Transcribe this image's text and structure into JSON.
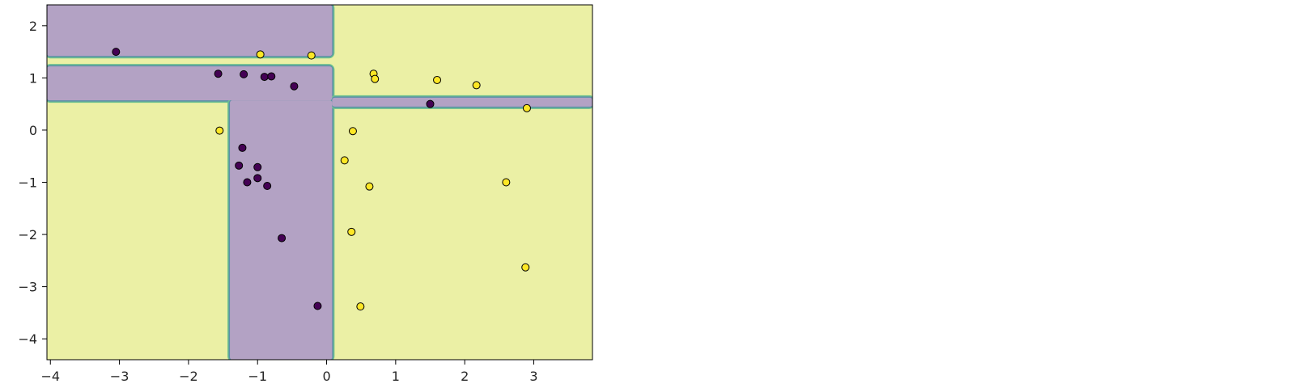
{
  "chart_data": {
    "type": "scatter",
    "title": "",
    "xlabel": "",
    "ylabel": "",
    "xlim": [
      -4.05,
      3.85
    ],
    "ylim": [
      -4.4,
      2.4
    ],
    "xticks": [
      -4,
      -3,
      -2,
      -1,
      0,
      1,
      2,
      3
    ],
    "yticks": [
      -4,
      -3,
      -2,
      -1,
      0,
      1,
      2
    ],
    "xtick_labels": [
      "−4",
      "−3",
      "−2",
      "−1",
      "0",
      "1",
      "2",
      "3"
    ],
    "ytick_labels": [
      "−4",
      "−3",
      "−2",
      "−1",
      "0",
      "1",
      "2"
    ],
    "grid": false,
    "background": {
      "description": "decision-tree decision regions",
      "class_colors": {
        "class_0": "#b3a2c4",
        "class_1": "#ebf0a5"
      },
      "boundary_colors": [
        "#5b8fa6",
        "#6cc08f"
      ],
      "class_0_regions": [
        {
          "x": [
            -4.05,
            0.08
          ],
          "y": [
            1.42,
            2.4
          ]
        },
        {
          "x": [
            -4.05,
            0.08
          ],
          "y": [
            0.57,
            1.22
          ]
        },
        {
          "x": [
            -1.4,
            0.08
          ],
          "y": [
            -4.4,
            0.57
          ]
        },
        {
          "x": [
            0.08,
            3.85
          ],
          "y": [
            0.45,
            0.62
          ]
        }
      ]
    },
    "series": [
      {
        "class": 0,
        "color": "#440154",
        "points": [
          [
            -3.05,
            1.5
          ],
          [
            -1.57,
            1.08
          ],
          [
            -1.2,
            1.07
          ],
          [
            -0.9,
            1.02
          ],
          [
            -0.8,
            1.03
          ],
          [
            -0.47,
            0.84
          ],
          [
            1.5,
            0.5
          ],
          [
            -1.22,
            -0.34
          ],
          [
            -1.27,
            -0.68
          ],
          [
            -1.0,
            -0.71
          ],
          [
            -1.0,
            -0.92
          ],
          [
            -1.15,
            -1.0
          ],
          [
            -0.86,
            -1.07
          ],
          [
            -0.65,
            -2.07
          ],
          [
            -0.13,
            -3.37
          ]
        ]
      },
      {
        "class": 1,
        "color": "#fde725",
        "points": [
          [
            -0.96,
            1.45
          ],
          [
            -0.22,
            1.43
          ],
          [
            0.68,
            1.08
          ],
          [
            0.7,
            0.98
          ],
          [
            1.6,
            0.96
          ],
          [
            2.17,
            0.86
          ],
          [
            2.9,
            0.42
          ],
          [
            -1.55,
            -0.01
          ],
          [
            0.38,
            -0.02
          ],
          [
            0.26,
            -0.58
          ],
          [
            0.62,
            -1.08
          ],
          [
            2.6,
            -1.0
          ],
          [
            0.36,
            -1.95
          ],
          [
            0.49,
            -3.38
          ],
          [
            2.88,
            -2.63
          ]
        ]
      }
    ]
  }
}
